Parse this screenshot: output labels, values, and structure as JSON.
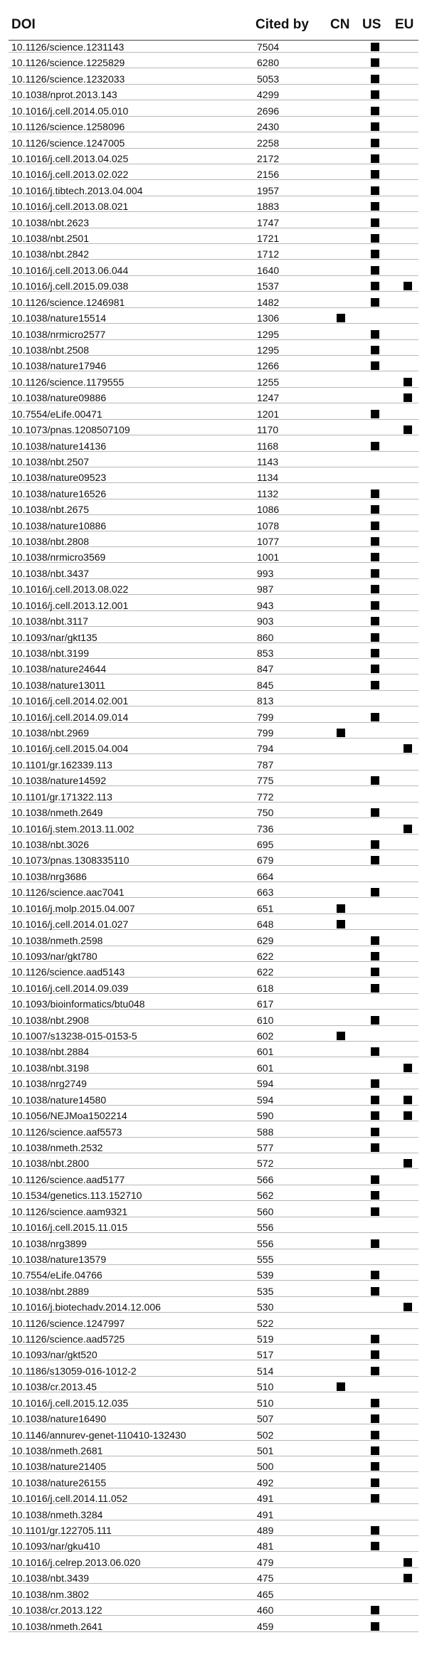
{
  "chart_data": {
    "type": "table",
    "columns": [
      "DOI",
      "Cited by",
      "CN",
      "US",
      "EU"
    ],
    "rows": [
      {
        "doi": "10.1126/science.1231143",
        "cited": 7504,
        "cn": false,
        "us": true,
        "eu": false
      },
      {
        "doi": "10.1126/science.1225829",
        "cited": 6280,
        "cn": false,
        "us": true,
        "eu": false
      },
      {
        "doi": "10.1126/science.1232033",
        "cited": 5053,
        "cn": false,
        "us": true,
        "eu": false
      },
      {
        "doi": "10.1038/nprot.2013.143",
        "cited": 4299,
        "cn": false,
        "us": true,
        "eu": false
      },
      {
        "doi": "10.1016/j.cell.2014.05.010",
        "cited": 2696,
        "cn": false,
        "us": true,
        "eu": false
      },
      {
        "doi": "10.1126/science.1258096",
        "cited": 2430,
        "cn": false,
        "us": true,
        "eu": false
      },
      {
        "doi": "10.1126/science.1247005",
        "cited": 2258,
        "cn": false,
        "us": true,
        "eu": false
      },
      {
        "doi": "10.1016/j.cell.2013.04.025",
        "cited": 2172,
        "cn": false,
        "us": true,
        "eu": false
      },
      {
        "doi": "10.1016/j.cell.2013.02.022",
        "cited": 2156,
        "cn": false,
        "us": true,
        "eu": false
      },
      {
        "doi": "10.1016/j.tibtech.2013.04.004",
        "cited": 1957,
        "cn": false,
        "us": true,
        "eu": false
      },
      {
        "doi": "10.1016/j.cell.2013.08.021",
        "cited": 1883,
        "cn": false,
        "us": true,
        "eu": false
      },
      {
        "doi": "10.1038/nbt.2623",
        "cited": 1747,
        "cn": false,
        "us": true,
        "eu": false
      },
      {
        "doi": "10.1038/nbt.2501",
        "cited": 1721,
        "cn": false,
        "us": true,
        "eu": false
      },
      {
        "doi": "10.1038/nbt.2842",
        "cited": 1712,
        "cn": false,
        "us": true,
        "eu": false
      },
      {
        "doi": "10.1016/j.cell.2013.06.044",
        "cited": 1640,
        "cn": false,
        "us": true,
        "eu": false
      },
      {
        "doi": "10.1016/j.cell.2015.09.038",
        "cited": 1537,
        "cn": false,
        "us": true,
        "eu": true
      },
      {
        "doi": "10.1126/science.1246981",
        "cited": 1482,
        "cn": false,
        "us": true,
        "eu": false
      },
      {
        "doi": "10.1038/nature15514",
        "cited": 1306,
        "cn": true,
        "us": false,
        "eu": false
      },
      {
        "doi": "10.1038/nrmicro2577",
        "cited": 1295,
        "cn": false,
        "us": true,
        "eu": false
      },
      {
        "doi": "10.1038/nbt.2508",
        "cited": 1295,
        "cn": false,
        "us": true,
        "eu": false
      },
      {
        "doi": "10.1038/nature17946",
        "cited": 1266,
        "cn": false,
        "us": true,
        "eu": false
      },
      {
        "doi": "10.1126/science.1179555",
        "cited": 1255,
        "cn": false,
        "us": false,
        "eu": true
      },
      {
        "doi": "10.1038/nature09886",
        "cited": 1247,
        "cn": false,
        "us": false,
        "eu": true
      },
      {
        "doi": "10.7554/eLife.00471",
        "cited": 1201,
        "cn": false,
        "us": true,
        "eu": false
      },
      {
        "doi": "10.1073/pnas.1208507109",
        "cited": 1170,
        "cn": false,
        "us": false,
        "eu": true
      },
      {
        "doi": "10.1038/nature14136",
        "cited": 1168,
        "cn": false,
        "us": true,
        "eu": false
      },
      {
        "doi": "10.1038/nbt.2507",
        "cited": 1143,
        "cn": false,
        "us": false,
        "eu": false
      },
      {
        "doi": "10.1038/nature09523",
        "cited": 1134,
        "cn": false,
        "us": false,
        "eu": false
      },
      {
        "doi": "10.1038/nature16526",
        "cited": 1132,
        "cn": false,
        "us": true,
        "eu": false
      },
      {
        "doi": "10.1038/nbt.2675",
        "cited": 1086,
        "cn": false,
        "us": true,
        "eu": false
      },
      {
        "doi": "10.1038/nature10886",
        "cited": 1078,
        "cn": false,
        "us": true,
        "eu": false
      },
      {
        "doi": "10.1038/nbt.2808",
        "cited": 1077,
        "cn": false,
        "us": true,
        "eu": false
      },
      {
        "doi": "10.1038/nrmicro3569",
        "cited": 1001,
        "cn": false,
        "us": true,
        "eu": false
      },
      {
        "doi": "10.1038/nbt.3437",
        "cited": 993,
        "cn": false,
        "us": true,
        "eu": false
      },
      {
        "doi": "10.1016/j.cell.2013.08.022",
        "cited": 987,
        "cn": false,
        "us": true,
        "eu": false
      },
      {
        "doi": "10.1016/j.cell.2013.12.001",
        "cited": 943,
        "cn": false,
        "us": true,
        "eu": false
      },
      {
        "doi": "10.1038/nbt.3117",
        "cited": 903,
        "cn": false,
        "us": true,
        "eu": false
      },
      {
        "doi": "10.1093/nar/gkt135",
        "cited": 860,
        "cn": false,
        "us": true,
        "eu": false
      },
      {
        "doi": "10.1038/nbt.3199",
        "cited": 853,
        "cn": false,
        "us": true,
        "eu": false
      },
      {
        "doi": "10.1038/nature24644",
        "cited": 847,
        "cn": false,
        "us": true,
        "eu": false
      },
      {
        "doi": "10.1038/nature13011",
        "cited": 845,
        "cn": false,
        "us": true,
        "eu": false
      },
      {
        "doi": "10.1016/j.cell.2014.02.001",
        "cited": 813,
        "cn": false,
        "us": false,
        "eu": false
      },
      {
        "doi": "10.1016/j.cell.2014.09.014",
        "cited": 799,
        "cn": false,
        "us": true,
        "eu": false
      },
      {
        "doi": "10.1038/nbt.2969",
        "cited": 799,
        "cn": true,
        "us": false,
        "eu": false
      },
      {
        "doi": "10.1016/j.cell.2015.04.004",
        "cited": 794,
        "cn": false,
        "us": false,
        "eu": true
      },
      {
        "doi": "10.1101/gr.162339.113",
        "cited": 787,
        "cn": false,
        "us": false,
        "eu": false
      },
      {
        "doi": "10.1038/nature14592",
        "cited": 775,
        "cn": false,
        "us": true,
        "eu": false
      },
      {
        "doi": "10.1101/gr.171322.113",
        "cited": 772,
        "cn": false,
        "us": false,
        "eu": false
      },
      {
        "doi": "10.1038/nmeth.2649",
        "cited": 750,
        "cn": false,
        "us": true,
        "eu": false
      },
      {
        "doi": "10.1016/j.stem.2013.11.002",
        "cited": 736,
        "cn": false,
        "us": false,
        "eu": true
      },
      {
        "doi": "10.1038/nbt.3026",
        "cited": 695,
        "cn": false,
        "us": true,
        "eu": false
      },
      {
        "doi": "10.1073/pnas.1308335110",
        "cited": 679,
        "cn": false,
        "us": true,
        "eu": false
      },
      {
        "doi": "10.1038/nrg3686",
        "cited": 664,
        "cn": false,
        "us": false,
        "eu": false
      },
      {
        "doi": "10.1126/science.aac7041",
        "cited": 663,
        "cn": false,
        "us": true,
        "eu": false
      },
      {
        "doi": "10.1016/j.molp.2015.04.007",
        "cited": 651,
        "cn": true,
        "us": false,
        "eu": false
      },
      {
        "doi": "10.1016/j.cell.2014.01.027",
        "cited": 648,
        "cn": true,
        "us": false,
        "eu": false
      },
      {
        "doi": "10.1038/nmeth.2598",
        "cited": 629,
        "cn": false,
        "us": true,
        "eu": false
      },
      {
        "doi": "10.1093/nar/gkt780",
        "cited": 622,
        "cn": false,
        "us": true,
        "eu": false
      },
      {
        "doi": "10.1126/science.aad5143",
        "cited": 622,
        "cn": false,
        "us": true,
        "eu": false
      },
      {
        "doi": "10.1016/j.cell.2014.09.039",
        "cited": 618,
        "cn": false,
        "us": true,
        "eu": false
      },
      {
        "doi": "10.1093/bioinformatics/btu048",
        "cited": 617,
        "cn": false,
        "us": false,
        "eu": false
      },
      {
        "doi": "10.1038/nbt.2908",
        "cited": 610,
        "cn": false,
        "us": true,
        "eu": false
      },
      {
        "doi": "10.1007/s13238-015-0153-5",
        "cited": 602,
        "cn": true,
        "us": false,
        "eu": false
      },
      {
        "doi": "10.1038/nbt.2884",
        "cited": 601,
        "cn": false,
        "us": true,
        "eu": false
      },
      {
        "doi": "10.1038/nbt.3198",
        "cited": 601,
        "cn": false,
        "us": false,
        "eu": true
      },
      {
        "doi": "10.1038/nrg2749",
        "cited": 594,
        "cn": false,
        "us": true,
        "eu": false
      },
      {
        "doi": "10.1038/nature14580",
        "cited": 594,
        "cn": false,
        "us": true,
        "eu": true
      },
      {
        "doi": "10.1056/NEJMoa1502214",
        "cited": 590,
        "cn": false,
        "us": true,
        "eu": true
      },
      {
        "doi": "10.1126/science.aaf5573",
        "cited": 588,
        "cn": false,
        "us": true,
        "eu": false
      },
      {
        "doi": "10.1038/nmeth.2532",
        "cited": 577,
        "cn": false,
        "us": true,
        "eu": false
      },
      {
        "doi": "10.1038/nbt.2800",
        "cited": 572,
        "cn": false,
        "us": false,
        "eu": true
      },
      {
        "doi": "10.1126/science.aad5177",
        "cited": 566,
        "cn": false,
        "us": true,
        "eu": false
      },
      {
        "doi": "10.1534/genetics.113.152710",
        "cited": 562,
        "cn": false,
        "us": true,
        "eu": false
      },
      {
        "doi": "10.1126/science.aam9321",
        "cited": 560,
        "cn": false,
        "us": true,
        "eu": false
      },
      {
        "doi": "10.1016/j.cell.2015.11.015",
        "cited": 556,
        "cn": false,
        "us": false,
        "eu": false
      },
      {
        "doi": "10.1038/nrg3899",
        "cited": 556,
        "cn": false,
        "us": true,
        "eu": false
      },
      {
        "doi": "10.1038/nature13579",
        "cited": 555,
        "cn": false,
        "us": false,
        "eu": false
      },
      {
        "doi": "10.7554/eLife.04766",
        "cited": 539,
        "cn": false,
        "us": true,
        "eu": false
      },
      {
        "doi": "10.1038/nbt.2889",
        "cited": 535,
        "cn": false,
        "us": true,
        "eu": false
      },
      {
        "doi": "10.1016/j.biotechadv.2014.12.006",
        "cited": 530,
        "cn": false,
        "us": false,
        "eu": true
      },
      {
        "doi": "10.1126/science.1247997",
        "cited": 522,
        "cn": false,
        "us": false,
        "eu": false
      },
      {
        "doi": "10.1126/science.aad5725",
        "cited": 519,
        "cn": false,
        "us": true,
        "eu": false
      },
      {
        "doi": "10.1093/nar/gkt520",
        "cited": 517,
        "cn": false,
        "us": true,
        "eu": false
      },
      {
        "doi": "10.1186/s13059-016-1012-2",
        "cited": 514,
        "cn": false,
        "us": true,
        "eu": false
      },
      {
        "doi": "10.1038/cr.2013.45",
        "cited": 510,
        "cn": true,
        "us": false,
        "eu": false
      },
      {
        "doi": "10.1016/j.cell.2015.12.035",
        "cited": 510,
        "cn": false,
        "us": true,
        "eu": false
      },
      {
        "doi": "10.1038/nature16490",
        "cited": 507,
        "cn": false,
        "us": true,
        "eu": false
      },
      {
        "doi": "10.1146/annurev-genet-110410-132430",
        "cited": 502,
        "cn": false,
        "us": true,
        "eu": false
      },
      {
        "doi": "10.1038/nmeth.2681",
        "cited": 501,
        "cn": false,
        "us": true,
        "eu": false
      },
      {
        "doi": "10.1038/nature21405",
        "cited": 500,
        "cn": false,
        "us": true,
        "eu": false
      },
      {
        "doi": "10.1038/nature26155",
        "cited": 492,
        "cn": false,
        "us": true,
        "eu": false
      },
      {
        "doi": "10.1016/j.cell.2014.11.052",
        "cited": 491,
        "cn": false,
        "us": true,
        "eu": false
      },
      {
        "doi": "10.1038/nmeth.3284",
        "cited": 491,
        "cn": false,
        "us": false,
        "eu": false
      },
      {
        "doi": "10.1101/gr.122705.111",
        "cited": 489,
        "cn": false,
        "us": true,
        "eu": false
      },
      {
        "doi": "10.1093/nar/gku410",
        "cited": 481,
        "cn": false,
        "us": true,
        "eu": false
      },
      {
        "doi": "10.1016/j.celrep.2013.06.020",
        "cited": 479,
        "cn": false,
        "us": false,
        "eu": true
      },
      {
        "doi": "10.1038/nbt.3439",
        "cited": 475,
        "cn": false,
        "us": false,
        "eu": true
      },
      {
        "doi": "10.1038/nm.3802",
        "cited": 465,
        "cn": false,
        "us": false,
        "eu": false
      },
      {
        "doi": "10.1038/cr.2013.122",
        "cited": 460,
        "cn": false,
        "us": true,
        "eu": false
      },
      {
        "doi": "10.1038/nmeth.2641",
        "cited": 459,
        "cn": false,
        "us": true,
        "eu": false
      }
    ]
  }
}
